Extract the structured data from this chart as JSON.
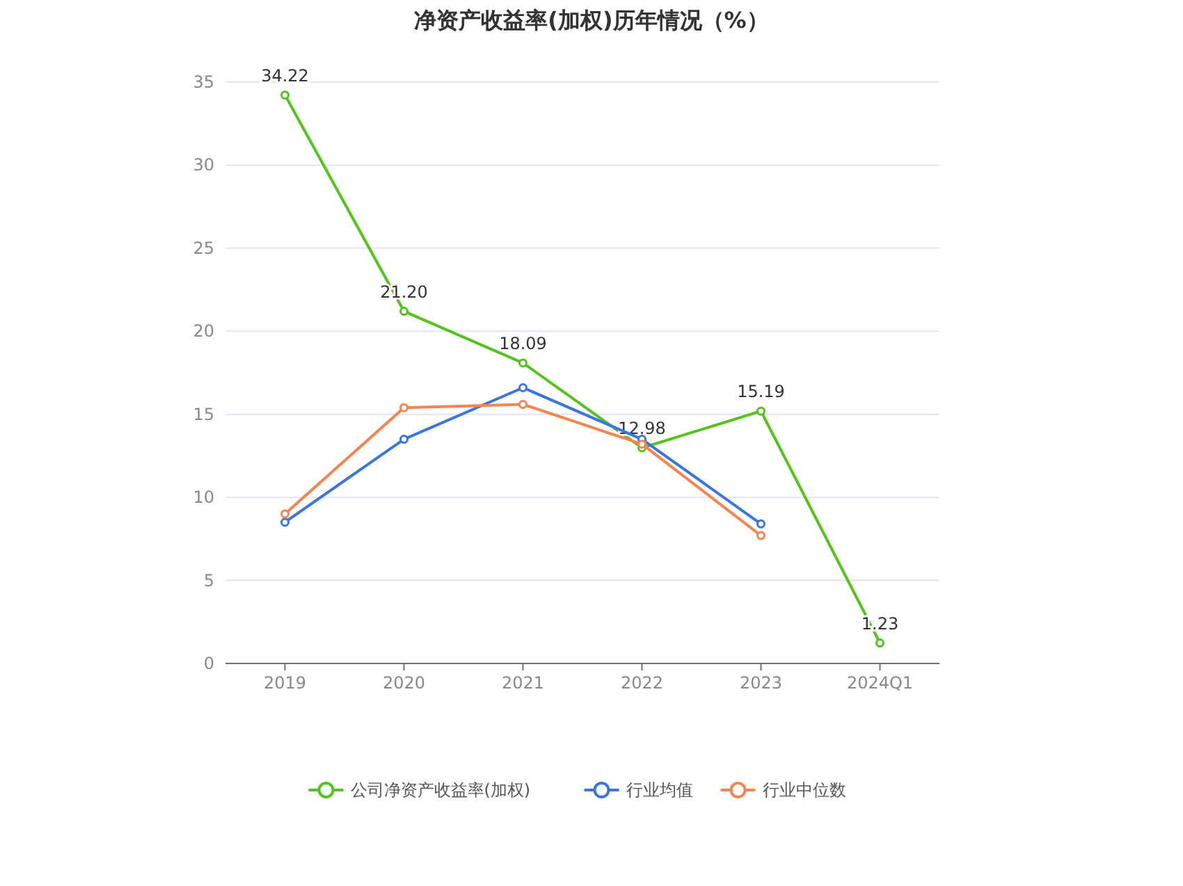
{
  "chart_data": {
    "type": "line",
    "title": "净资产收益率(加权)历年情况（%）",
    "categories": [
      "2019",
      "2020",
      "2021",
      "2022",
      "2023",
      "2024Q1"
    ],
    "series": [
      {
        "name": "公司净资产收益率(加权)",
        "color": "#52c41a",
        "values": [
          34.22,
          21.2,
          18.09,
          12.98,
          15.19,
          1.23
        ],
        "value_labels": [
          "34.22",
          "21.20",
          "18.09",
          "12.98",
          "15.19",
          "1.23"
        ]
      },
      {
        "name": "行业均值",
        "color": "#3a75e0",
        "values": [
          8.5,
          13.5,
          16.6,
          13.5,
          8.4,
          null
        ]
      },
      {
        "name": "行业中位数",
        "color": "#f7834f",
        "values": [
          9.0,
          15.4,
          15.6,
          13.2,
          7.7,
          null
        ]
      }
    ],
    "ylim": [
      0,
      35
    ],
    "yticks": [
      0,
      5,
      10,
      15,
      20,
      25,
      30,
      35
    ],
    "grid": "y",
    "legend": "bottom",
    "marker": "circle",
    "line_style": "solid"
  }
}
